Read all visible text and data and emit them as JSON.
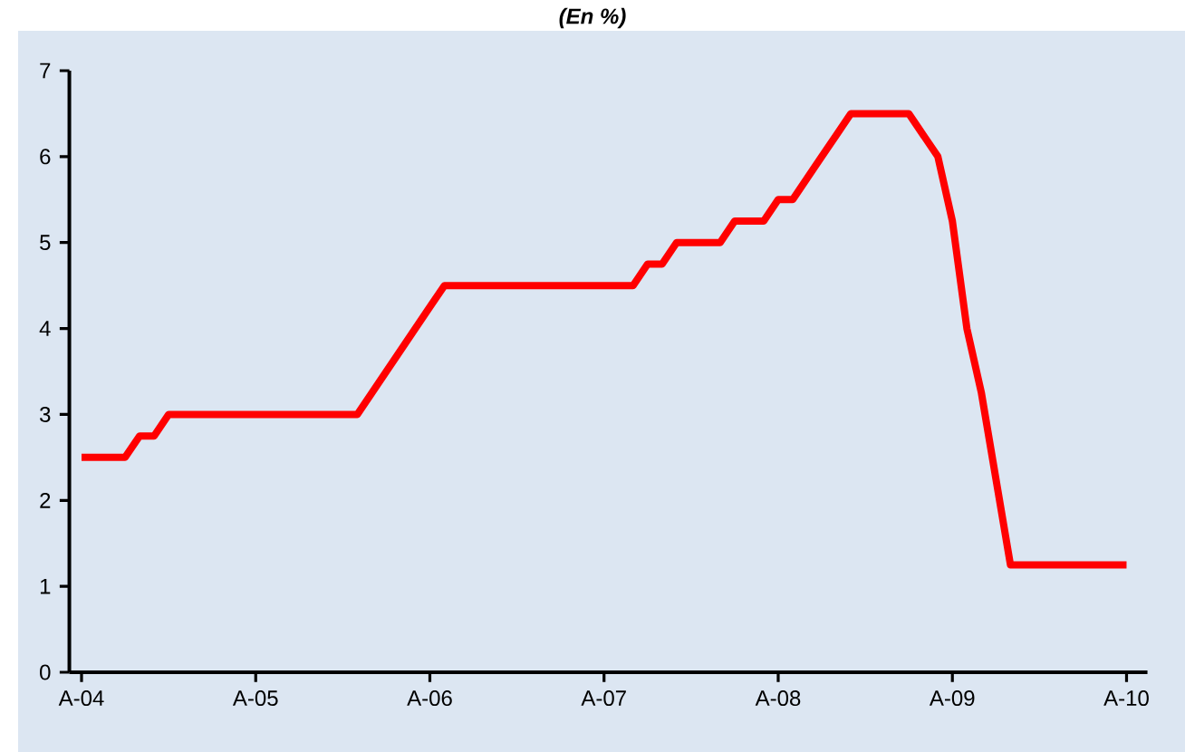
{
  "chart_data": {
    "type": "line",
    "title": "(En %)",
    "categories": [
      "A-04",
      null,
      null,
      null,
      null,
      null,
      null,
      null,
      null,
      null,
      null,
      null,
      "A-05",
      null,
      null,
      null,
      null,
      null,
      null,
      null,
      null,
      null,
      null,
      null,
      "A-06",
      null,
      null,
      null,
      null,
      null,
      null,
      null,
      null,
      null,
      null,
      null,
      "A-07",
      null,
      null,
      null,
      null,
      null,
      null,
      null,
      null,
      null,
      null,
      null,
      "A-08",
      null,
      null,
      null,
      null,
      null,
      null,
      null,
      null,
      null,
      null,
      null,
      "A-09",
      null,
      null,
      null,
      null,
      null,
      null,
      null,
      null,
      null,
      null,
      null,
      "A-10"
    ],
    "series": [
      {
        "color": "#ff0000",
        "values": [
          2.5,
          2.5,
          2.5,
          2.5,
          2.75,
          2.75,
          3.0,
          3.0,
          3.0,
          3.0,
          3.0,
          3.0,
          3.0,
          3.0,
          3.0,
          3.0,
          3.0,
          3.0,
          3.0,
          3.0,
          3.25,
          3.5,
          3.75,
          4.0,
          4.25,
          4.5,
          4.5,
          4.5,
          4.5,
          4.5,
          4.5,
          4.5,
          4.5,
          4.5,
          4.5,
          4.5,
          4.5,
          4.5,
          4.5,
          4.75,
          4.75,
          5.0,
          5.0,
          5.0,
          5.0,
          5.25,
          5.25,
          5.25,
          5.5,
          5.5,
          5.75,
          6.0,
          6.25,
          6.5,
          6.5,
          6.5,
          6.5,
          6.5,
          6.25,
          6.0,
          5.25,
          4.0,
          3.25,
          2.25,
          1.25,
          1.25,
          1.25,
          1.25,
          1.25,
          1.25,
          1.25,
          1.25,
          1.25
        ]
      }
    ],
    "ylim": [
      0,
      7
    ],
    "yticks": [
      0,
      1,
      2,
      3,
      4,
      5,
      6,
      7
    ],
    "line_style": "solid",
    "marker": "none"
  }
}
